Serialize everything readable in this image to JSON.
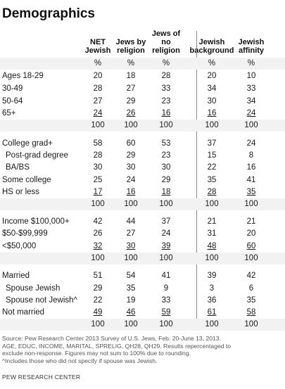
{
  "title": "Demographics",
  "columns": [
    [
      "NET",
      "Jewish"
    ],
    [
      "Jews by",
      "religion"
    ],
    [
      "Jews of",
      "no",
      "religion"
    ],
    [
      "Jewish",
      "background"
    ],
    [
      "Jewish",
      "affinity"
    ]
  ],
  "rows": [
    {
      "label": "",
      "values": [
        "%",
        "%",
        "%",
        "%",
        "%"
      ]
    },
    {
      "label": "Ages 18-29",
      "values": [
        "20",
        "18",
        "28",
        "20",
        "10"
      ]
    },
    {
      "label": "30-49",
      "values": [
        "28",
        "27",
        "33",
        "34",
        "33"
      ]
    },
    {
      "label": "50-64",
      "values": [
        "27",
        "29",
        "23",
        "30",
        "34"
      ]
    },
    {
      "label": "65+",
      "values": [
        "24",
        "26",
        "16",
        "16",
        "24"
      ]
    },
    {
      "label": "",
      "values": [
        "100",
        "100",
        "100",
        "100",
        "100"
      ]
    },
    {
      "label": "College grad+",
      "values": [
        "58",
        "60",
        "53",
        "37",
        "24"
      ]
    },
    {
      "label": "Post-grad degree",
      "values": [
        "28",
        "29",
        "23",
        "15",
        "8"
      ]
    },
    {
      "label": "BA/BS",
      "values": [
        "30",
        "30",
        "30",
        "22",
        "16"
      ]
    },
    {
      "label": "Some college",
      "values": [
        "25",
        "24",
        "29",
        "35",
        "41"
      ]
    },
    {
      "label": "HS or less",
      "values": [
        "17",
        "16",
        "18",
        "28",
        "35"
      ]
    },
    {
      "label": "",
      "values": [
        "100",
        "100",
        "100",
        "100",
        "100"
      ]
    },
    {
      "label": "Income $100,000+",
      "values": [
        "42",
        "44",
        "37",
        "21",
        "21"
      ]
    },
    {
      "label": "$50-$99,999",
      "values": [
        "26",
        "27",
        "24",
        "31",
        "20"
      ]
    },
    {
      "label": "<$50,000",
      "values": [
        "32",
        "30",
        "39",
        "48",
        "60"
      ]
    },
    {
      "label": "",
      "values": [
        "100",
        "100",
        "100",
        "100",
        "100"
      ]
    },
    {
      "label": "Married",
      "values": [
        "51",
        "54",
        "41",
        "39",
        "42"
      ]
    },
    {
      "label": "Spouse Jewish",
      "values": [
        "29",
        "35",
        "9",
        "3",
        "6"
      ]
    },
    {
      "label": "Spouse not Jewish^",
      "values": [
        "22",
        "19",
        "33",
        "36",
        "35"
      ]
    },
    {
      "label": "Not married",
      "values": [
        "49",
        "46",
        "59",
        "61",
        "58"
      ]
    },
    {
      "label": "",
      "values": [
        "100",
        "100",
        "100",
        "100",
        "100"
      ]
    }
  ],
  "source_lines": [
    "Source: Pew Research Center 2013 Survey of U.S. Jews, Feb. 20-June 13, 2013.",
    "AGE, EDUC, INCOME, MARITAL, SPRELIG, QH28, QH29. Results repercentaged to",
    "exclude non-response. Figures may not sum to 100% due to rounding.",
    "^Includes those who did not specify if spouse was Jewish."
  ],
  "brand": "PEW RESEARCH CENTER"
}
